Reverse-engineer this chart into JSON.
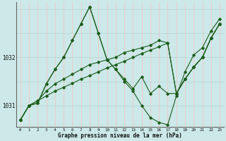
{
  "title": "Graphe pression niveau de la mer (hPa)",
  "bg_color": "#cce8e8",
  "grid_color_v": "#f0c8c8",
  "grid_color_h": "#b8d8d8",
  "line_color": "#1a5c1a",
  "xlim": [
    -0.5,
    23.5
  ],
  "ylim": [
    1030.55,
    1033.15
  ],
  "yticks": [
    1031,
    1032
  ],
  "xticks": [
    0,
    1,
    2,
    3,
    4,
    5,
    6,
    7,
    8,
    9,
    10,
    11,
    12,
    13,
    14,
    15,
    16,
    17,
    18,
    19,
    20,
    21,
    22,
    23
  ],
  "series1": [
    [
      0,
      1030.7
    ],
    [
      1,
      1031.0
    ],
    [
      2,
      1031.05
    ],
    [
      3,
      1031.45
    ],
    [
      4,
      1031.75
    ],
    [
      5,
      1032.0
    ],
    [
      6,
      1032.35
    ],
    [
      7,
      1032.7
    ],
    [
      8,
      1033.05
    ],
    [
      9,
      1032.5
    ],
    [
      10,
      1031.95
    ],
    [
      11,
      1031.75
    ],
    [
      12,
      1031.5
    ],
    [
      13,
      1031.3
    ],
    [
      14,
      1031.0
    ],
    [
      15,
      1030.75
    ],
    [
      16,
      1030.65
    ],
    [
      17,
      1030.6
    ],
    [
      18,
      1031.2
    ],
    [
      19,
      1031.7
    ],
    [
      20,
      1032.05
    ],
    [
      21,
      1032.2
    ],
    [
      22,
      1032.55
    ],
    [
      23,
      1032.8
    ]
  ],
  "series2": [
    [
      0,
      1030.7
    ],
    [
      1,
      1031.0
    ],
    [
      2,
      1031.05
    ],
    [
      3,
      1031.45
    ],
    [
      4,
      1031.75
    ],
    [
      5,
      1032.0
    ],
    [
      6,
      1032.35
    ],
    [
      7,
      1032.7
    ],
    [
      8,
      1033.05
    ],
    [
      9,
      1032.5
    ],
    [
      10,
      1031.95
    ],
    [
      11,
      1031.75
    ],
    [
      12,
      1031.55
    ],
    [
      13,
      1031.35
    ],
    [
      14,
      1031.6
    ],
    [
      15,
      1031.25
    ],
    [
      16,
      1031.4
    ],
    [
      17,
      1031.25
    ],
    [
      18,
      1031.25
    ],
    [
      19,
      1031.55
    ],
    [
      20,
      1031.8
    ],
    [
      21,
      1032.0
    ],
    [
      22,
      1032.4
    ],
    [
      23,
      1032.7
    ]
  ],
  "series3": [
    [
      0,
      1030.7
    ],
    [
      1,
      1031.0
    ],
    [
      2,
      1031.1
    ],
    [
      3,
      1031.3
    ],
    [
      4,
      1031.45
    ],
    [
      5,
      1031.55
    ],
    [
      6,
      1031.65
    ],
    [
      7,
      1031.75
    ],
    [
      8,
      1031.85
    ],
    [
      9,
      1031.9
    ],
    [
      10,
      1031.95
    ],
    [
      11,
      1032.0
    ],
    [
      12,
      1032.1
    ],
    [
      13,
      1032.15
    ],
    [
      14,
      1032.2
    ],
    [
      15,
      1032.25
    ],
    [
      16,
      1032.35
    ],
    [
      17,
      1032.3
    ],
    [
      18,
      1031.25
    ],
    [
      19,
      1031.55
    ],
    [
      20,
      1031.8
    ],
    [
      21,
      1032.0
    ],
    [
      22,
      1032.4
    ],
    [
      23,
      1032.7
    ]
  ],
  "series4": [
    [
      0,
      1030.7
    ],
    [
      1,
      1031.0
    ],
    [
      2,
      1031.1
    ],
    [
      3,
      1031.2
    ],
    [
      4,
      1031.3
    ],
    [
      5,
      1031.38
    ],
    [
      6,
      1031.46
    ],
    [
      7,
      1031.55
    ],
    [
      8,
      1031.62
    ],
    [
      9,
      1031.7
    ],
    [
      10,
      1031.78
    ],
    [
      11,
      1031.85
    ],
    [
      12,
      1031.92
    ],
    [
      13,
      1032.0
    ],
    [
      14,
      1032.08
    ],
    [
      15,
      1032.15
    ],
    [
      16,
      1032.22
    ],
    [
      17,
      1032.3
    ],
    [
      18,
      1031.25
    ],
    [
      19,
      1031.55
    ],
    [
      20,
      1031.8
    ],
    [
      21,
      1032.0
    ],
    [
      22,
      1032.4
    ],
    [
      23,
      1032.7
    ]
  ]
}
